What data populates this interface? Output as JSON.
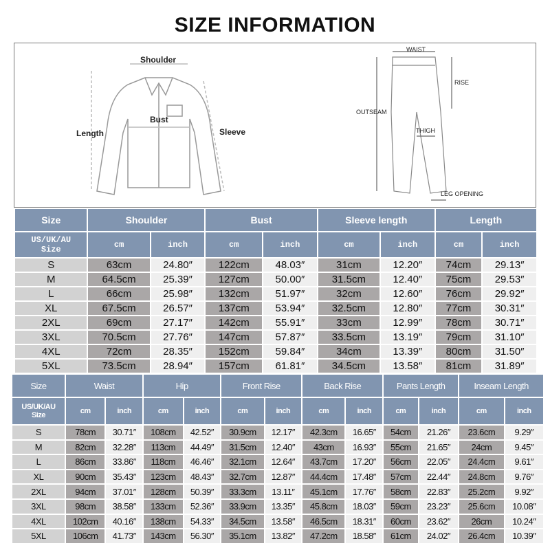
{
  "title": "SIZE INFORMATION",
  "diagram": {
    "shirt_labels": {
      "shoulder": "Shoulder",
      "bust": "Bust",
      "length": "Length",
      "sleeve": "Sleeve"
    },
    "pants_labels": {
      "waist": "WAIST",
      "rise": "RISE",
      "outseam": "OUTSEAM",
      "thigh": "THIGH",
      "leg_opening": "LEG OPENING"
    }
  },
  "colors": {
    "header": "#8195b0",
    "size_cell": "#d2d2d2",
    "cm_cell": "#aaa7a7",
    "inch_cell": "#efefef"
  },
  "top_table": {
    "size_label": "Size",
    "size_sub": [
      "US/UK/AU",
      "Size"
    ],
    "groups": [
      "Shoulder",
      "Bust",
      "Sleeve length",
      "Length"
    ],
    "units": [
      "cm",
      "inch"
    ],
    "rows": [
      [
        "S",
        "63cm",
        "24.80″",
        "122cm",
        "48.03″",
        "31cm",
        "12.20″",
        "74cm",
        "29.13″"
      ],
      [
        "M",
        "64.5cm",
        "25.39″",
        "127cm",
        "50.00″",
        "31.5cm",
        "12.40″",
        "75cm",
        "29.53″"
      ],
      [
        "L",
        "66cm",
        "25.98″",
        "132cm",
        "51.97″",
        "32cm",
        "12.60″",
        "76cm",
        "29.92″"
      ],
      [
        "XL",
        "67.5cm",
        "26.57″",
        "137cm",
        "53.94″",
        "32.5cm",
        "12.80″",
        "77cm",
        "30.31″"
      ],
      [
        "2XL",
        "69cm",
        "27.17″",
        "142cm",
        "55.91″",
        "33cm",
        "12.99″",
        "78cm",
        "30.71″"
      ],
      [
        "3XL",
        "70.5cm",
        "27.76″",
        "147cm",
        "57.87″",
        "33.5cm",
        "13.19″",
        "79cm",
        "31.10″"
      ],
      [
        "4XL",
        "72cm",
        "28.35″",
        "152cm",
        "59.84″",
        "34cm",
        "13.39″",
        "80cm",
        "31.50″"
      ],
      [
        "5XL",
        "73.5cm",
        "28.94″",
        "157cm",
        "61.81″",
        "34.5cm",
        "13.58″",
        "81cm",
        "31.89″"
      ]
    ]
  },
  "bottom_table": {
    "size_label": "Size",
    "size_sub": [
      "US/UK/AU",
      "Size"
    ],
    "groups": [
      "Waist",
      "Hip",
      "Front Rise",
      "Back Rise",
      "Pants Length",
      "Inseam Length"
    ],
    "units": [
      "cm",
      "inch"
    ],
    "rows": [
      [
        "S",
        "78cm",
        "30.71″",
        "108cm",
        "42.52″",
        "30.9cm",
        "12.17″",
        "42.3cm",
        "16.65″",
        "54cm",
        "21.26″",
        "23.6cm",
        "9.29″"
      ],
      [
        "M",
        "82cm",
        "32.28″",
        "113cm",
        "44.49″",
        "31.5cm",
        "12.40″",
        "43cm",
        "16.93″",
        "55cm",
        "21.65″",
        "24cm",
        "9.45″"
      ],
      [
        "L",
        "86cm",
        "33.86″",
        "118cm",
        "46.46″",
        "32.1cm",
        "12.64″",
        "43.7cm",
        "17.20″",
        "56cm",
        "22.05″",
        "24.4cm",
        "9.61″"
      ],
      [
        "XL",
        "90cm",
        "35.43″",
        "123cm",
        "48.43″",
        "32.7cm",
        "12.87″",
        "44.4cm",
        "17.48″",
        "57cm",
        "22.44″",
        "24.8cm",
        "9.76″"
      ],
      [
        "2XL",
        "94cm",
        "37.01″",
        "128cm",
        "50.39″",
        "33.3cm",
        "13.11″",
        "45.1cm",
        "17.76″",
        "58cm",
        "22.83″",
        "25.2cm",
        "9.92″"
      ],
      [
        "3XL",
        "98cm",
        "38.58″",
        "133cm",
        "52.36″",
        "33.9cm",
        "13.35″",
        "45.8cm",
        "18.03″",
        "59cm",
        "23.23″",
        "25.6cm",
        "10.08″"
      ],
      [
        "4XL",
        "102cm",
        "40.16″",
        "138cm",
        "54.33″",
        "34.5cm",
        "13.58″",
        "46.5cm",
        "18.31″",
        "60cm",
        "23.62″",
        "26cm",
        "10.24″"
      ],
      [
        "5XL",
        "106cm",
        "41.73″",
        "143cm",
        "56.30″",
        "35.1cm",
        "13.82″",
        "47.2cm",
        "18.58″",
        "61cm",
        "24.02″",
        "26.4cm",
        "10.39″"
      ]
    ]
  }
}
